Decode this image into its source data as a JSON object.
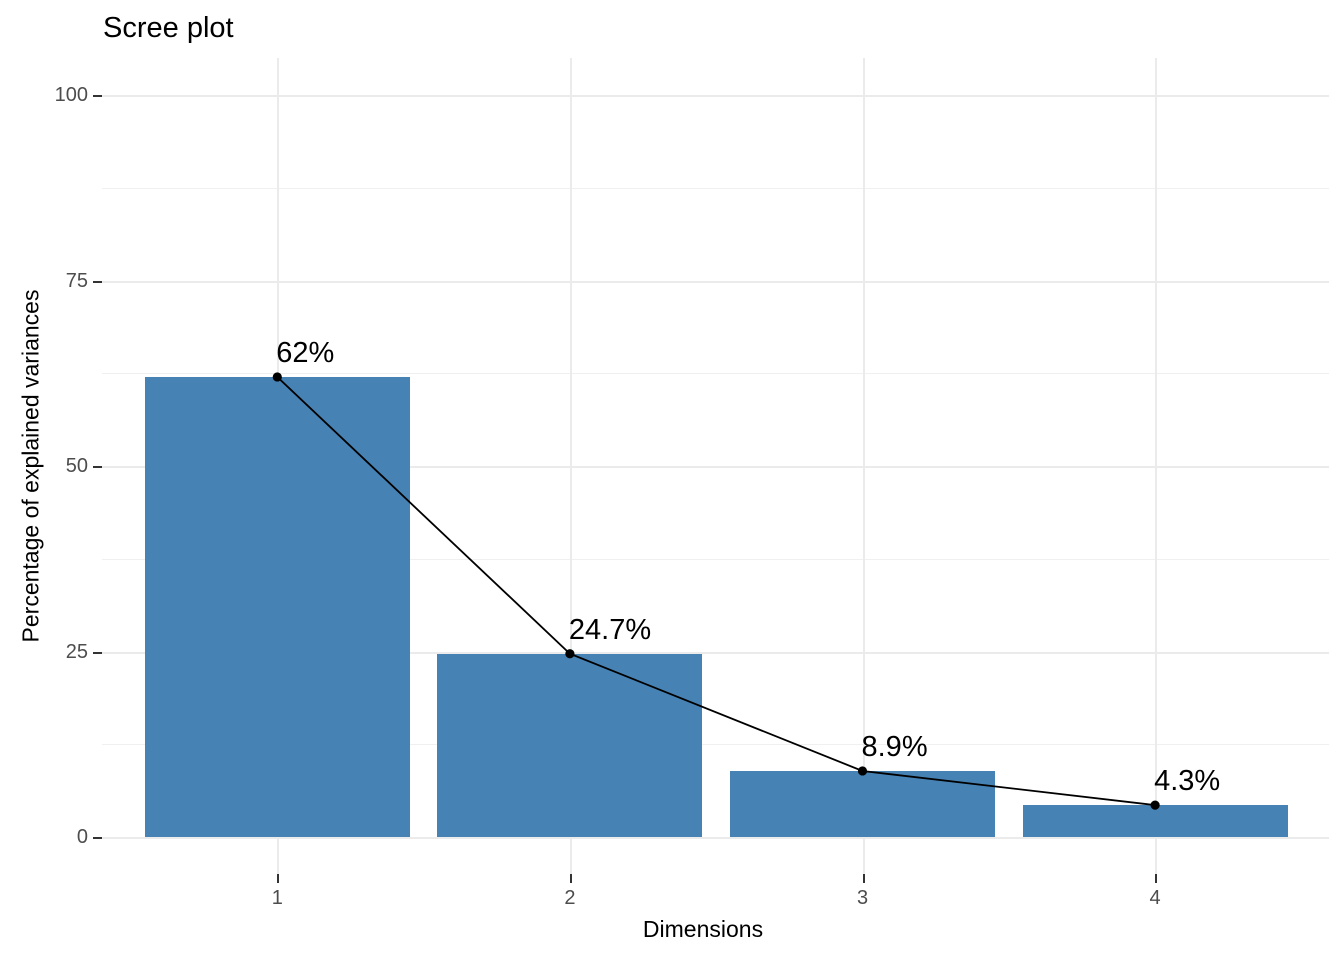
{
  "page": {
    "background_color": "#ffffff"
  },
  "chart_data": {
    "type": "bar",
    "subtype": "scree-plot-with-line-overlay",
    "title": "Scree plot",
    "xlabel": "Dimensions",
    "ylabel": "Percentage of explained variances",
    "categories": [
      "1",
      "2",
      "3",
      "4"
    ],
    "values": [
      62,
      24.7,
      8.9,
      4.3
    ],
    "point_labels": [
      "62%",
      "24.7%",
      "8.9%",
      "4.3%"
    ],
    "yticks": [
      0,
      25,
      50,
      75,
      100
    ],
    "ylim": [
      0,
      100
    ],
    "legend_position": "none",
    "grid": {
      "horizontal_major": true,
      "horizontal_minor": true,
      "vertical_major": true
    },
    "colors": {
      "bar_fill": "#4682B4",
      "line": "#000000",
      "point": "#000000",
      "point_label_text": "#000000",
      "tick_label_text": "#4d4d4d",
      "tick_mark": "#333333",
      "grid_major": "#ebebeb",
      "grid_minor": "#f0f0f0",
      "title_text": "#000000",
      "axis_title_text": "#000000",
      "panel_background": "#ffffff"
    }
  }
}
